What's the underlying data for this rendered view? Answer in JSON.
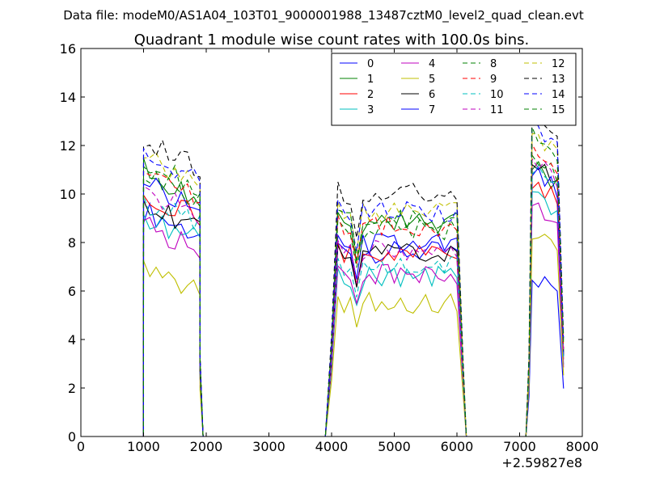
{
  "header": {
    "file_label": "Data file: modeM0/AS1A04_103T01_9000001988_13487cztM0_level2_quad_clean.evt"
  },
  "chart_data": {
    "type": "line",
    "title": "Quadrant 1 module wise count rates with 100.0s bins.",
    "xlabel": "",
    "ylabel": "",
    "x_offset_label": "+2.59827e8",
    "xlim": [
      0,
      8000
    ],
    "ylim": [
      0,
      16
    ],
    "xticks": [
      0,
      1000,
      2000,
      3000,
      4000,
      5000,
      6000,
      7000,
      8000
    ],
    "yticks": [
      0,
      2,
      4,
      6,
      8,
      10,
      12,
      14,
      16
    ],
    "xtick_labels": [
      "0",
      "1000",
      "2000",
      "3000",
      "4000",
      "5000",
      "6000",
      "7000",
      "8000"
    ],
    "ytick_labels": [
      "0",
      "2",
      "4",
      "6",
      "8",
      "10",
      "12",
      "14",
      "16"
    ],
    "grid": false,
    "legend_position": "top-right",
    "segments": [
      {
        "x0": 1000,
        "n": 10,
        "edge_x": 1900
      },
      {
        "x0": 4000,
        "n": 21,
        "start_x": 3900,
        "edge_x": 6100
      },
      {
        "x0": 7200,
        "n": 5,
        "start_x": 7100
      }
    ],
    "series": [
      {
        "name": "0",
        "color": "#0000ff",
        "dash": "solid",
        "levels": [
          9.3,
          7.6,
          6.6
        ]
      },
      {
        "name": "1",
        "color": "#008000",
        "dash": "solid",
        "levels": [
          11.0,
          8.8,
          11.2
        ]
      },
      {
        "name": "2",
        "color": "#ff0000",
        "dash": "solid",
        "levels": [
          10.1,
          7.6,
          10.6
        ]
      },
      {
        "name": "3",
        "color": "#00bfbf",
        "dash": "solid",
        "levels": [
          9.0,
          6.6,
          9.9
        ]
      },
      {
        "name": "4",
        "color": "#bf00bf",
        "dash": "solid",
        "levels": [
          8.7,
          6.7,
          9.5
        ]
      },
      {
        "name": "5",
        "color": "#bfbf00",
        "dash": "solid",
        "levels": [
          6.9,
          5.5,
          8.4
        ]
      },
      {
        "name": "6",
        "color": "#000000",
        "dash": "solid",
        "levels": [
          9.6,
          7.5,
          11.3
        ]
      },
      {
        "name": "7",
        "color": "#0000ff",
        "dash": "solid",
        "levels": [
          10.6,
          7.9,
          11.1
        ]
      },
      {
        "name": "8",
        "color": "#008000",
        "dash": "dashed",
        "levels": [
          11.4,
          8.5,
          11.7
        ]
      },
      {
        "name": "9",
        "color": "#ff0000",
        "dash": "dashed",
        "levels": [
          11.1,
          8.7,
          12.1
        ]
      },
      {
        "name": "10",
        "color": "#00bfbf",
        "dash": "dashed",
        "levels": [
          9.7,
          7.0,
          11.0
        ]
      },
      {
        "name": "11",
        "color": "#bf00bf",
        "dash": "dashed",
        "levels": [
          10.2,
          7.7,
          11.4
        ]
      },
      {
        "name": "12",
        "color": "#bfbf00",
        "dash": "dashed",
        "levels": [
          11.5,
          9.2,
          12.6
        ]
      },
      {
        "name": "13",
        "color": "#000000",
        "dash": "dashed",
        "levels": [
          12.3,
          10.0,
          13.6
        ]
      },
      {
        "name": "14",
        "color": "#0000ff",
        "dash": "dashed",
        "levels": [
          11.8,
          9.3,
          12.9
        ]
      },
      {
        "name": "15",
        "color": "#008000",
        "dash": "dashed",
        "levels": [
          11.0,
          8.9,
          12.6
        ]
      }
    ]
  }
}
